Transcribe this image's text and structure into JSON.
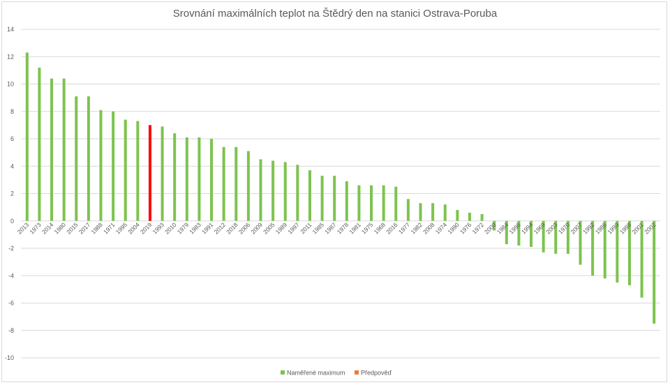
{
  "chart_data": {
    "type": "bar",
    "title": "Srovnání maximálních teplot na Štědrý den na stanici Ostrava-Poruba",
    "xlabel": "",
    "ylabel": "",
    "ylim": [
      -10,
      14
    ],
    "yticks": [
      14,
      12,
      10,
      8,
      6,
      4,
      2,
      0,
      -2,
      -4,
      -6,
      -8,
      -10
    ],
    "grid": true,
    "legend_position": "bottom",
    "categories": [
      "2013",
      "1973",
      "2014",
      "1980",
      "2015",
      "2017",
      "1988",
      "1971",
      "1995",
      "2004",
      "2019",
      "1993",
      "2010",
      "1979",
      "1983",
      "1991",
      "2012",
      "2018",
      "2006",
      "2009",
      "2005",
      "1989",
      "1997",
      "2011",
      "1985",
      "1987",
      "1978",
      "1981",
      "1975",
      "1968",
      "2016",
      "1977",
      "1982",
      "2008",
      "1974",
      "1990",
      "1976",
      "1972",
      "2000",
      "1984",
      "1996",
      "1994",
      "1969",
      "2003",
      "1970",
      "2007",
      "1992",
      "1986",
      "1999",
      "1998",
      "2001",
      "2002"
    ],
    "series": [
      {
        "name": "Naměřené maximum",
        "color": "#7dc34f",
        "values": [
          12.3,
          11.2,
          10.4,
          10.4,
          9.1,
          9.1,
          8.1,
          8.0,
          7.4,
          7.3,
          null,
          6.9,
          6.4,
          6.1,
          6.1,
          6.0,
          5.4,
          5.4,
          5.1,
          4.5,
          4.4,
          4.3,
          4.1,
          3.7,
          3.3,
          3.3,
          2.9,
          2.6,
          2.6,
          2.6,
          2.5,
          1.6,
          1.3,
          1.3,
          1.2,
          0.8,
          0.6,
          0.5,
          -0.7,
          -1.7,
          -1.8,
          -1.9,
          -2.3,
          -2.4,
          -2.4,
          -3.2,
          -4.0,
          -4.2,
          -4.5,
          -4.7,
          -5.6,
          -7.5
        ]
      },
      {
        "name": "Předpověď",
        "color": "#ed7d31",
        "highlight_color": "#ff0000",
        "values": [
          null,
          null,
          null,
          null,
          null,
          null,
          null,
          null,
          null,
          null,
          7.0,
          null,
          null,
          null,
          null,
          null,
          null,
          null,
          null,
          null,
          null,
          null,
          null,
          null,
          null,
          null,
          null,
          null,
          null,
          null,
          null,
          null,
          null,
          null,
          null,
          null,
          null,
          null,
          null,
          null,
          null,
          null,
          null,
          null,
          null,
          null,
          null,
          null,
          null,
          null,
          null,
          null
        ]
      }
    ]
  }
}
